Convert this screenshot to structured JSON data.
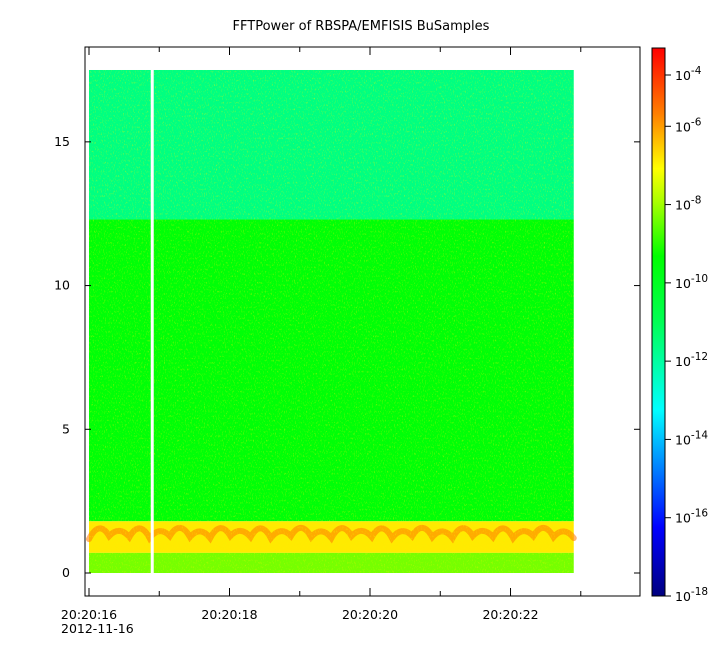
{
  "chart_data": {
    "type": "heatmap",
    "title": "FFTPower of RBSPA/EMFISIS  BuSamples",
    "xlabel": "",
    "ylabel": "",
    "x_tick_labels": [
      "20:20:16",
      "20:20:18",
      "20:20:20",
      "20:20:22"
    ],
    "x_date_label": "2012-11-16",
    "y_tick_labels": [
      "0",
      "5",
      "10",
      "15"
    ],
    "y_ticks": [
      0,
      5,
      10,
      15
    ],
    "ylim": [
      -0.8,
      18.3
    ],
    "xlim_seconds": [
      16,
      23.9
    ],
    "data_time_range_seconds": [
      16,
      22.9
    ],
    "data_gap_seconds": 16.9,
    "zscale": "log",
    "zlim": [
      1e-18,
      0.0001
    ],
    "colorbar_exponents": [
      "-4",
      "-6",
      "-8",
      "-10",
      "-12",
      "-14",
      "-16",
      "-18"
    ],
    "colorbar_base": "10",
    "bands": [
      {
        "y_range": [
          12.3,
          17.5
        ],
        "log_power": -12.3,
        "note": "upper band"
      },
      {
        "y_range": [
          1.8,
          12.3
        ],
        "log_power": -10.6
      },
      {
        "y_range": [
          0.7,
          1.8
        ],
        "log_power": -8.2,
        "note": "emission band"
      },
      {
        "y_range": [
          0,
          0.7
        ],
        "log_power": -9.6
      }
    ]
  }
}
